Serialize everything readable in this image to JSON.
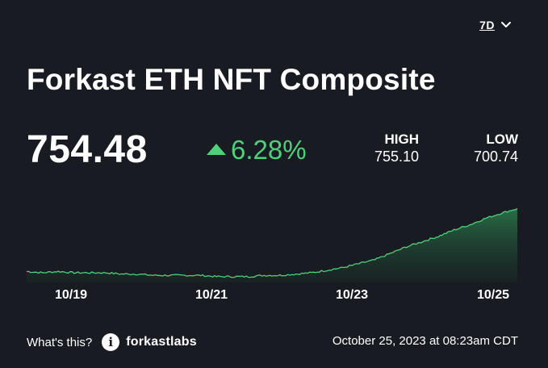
{
  "period": {
    "label": "7D",
    "icon": "chevron-down-icon"
  },
  "title": "Forkast ETH NFT Composite",
  "price": {
    "value": "754.48"
  },
  "change": {
    "value": "6.28%",
    "direction": "up",
    "color": "#4fd07a"
  },
  "high": {
    "label": "HIGH",
    "value": "755.10"
  },
  "low": {
    "label": "LOW",
    "value": "700.74"
  },
  "chart_data": {
    "type": "area",
    "x_ticks": [
      "10/19",
      "10/21",
      "10/23",
      "10/25"
    ],
    "series": [
      {
        "values": [
          706,
          705,
          706,
          705,
          705,
          705,
          704,
          704,
          703,
          703,
          703,
          703,
          702,
          702,
          702,
          703,
          703,
          704,
          705,
          707,
          709,
          712,
          715,
          720,
          725,
          729,
          733,
          738,
          742,
          747,
          751,
          754.48
        ]
      }
    ],
    "ylim": [
      700,
      756
    ],
    "line_color": "#4fd07a",
    "grid": false
  },
  "footer": {
    "whats_this": "What's this?",
    "info_icon": "info-icon",
    "brand": "forkastlabs",
    "timestamp": "October 25, 2023 at 08:23am CDT"
  }
}
